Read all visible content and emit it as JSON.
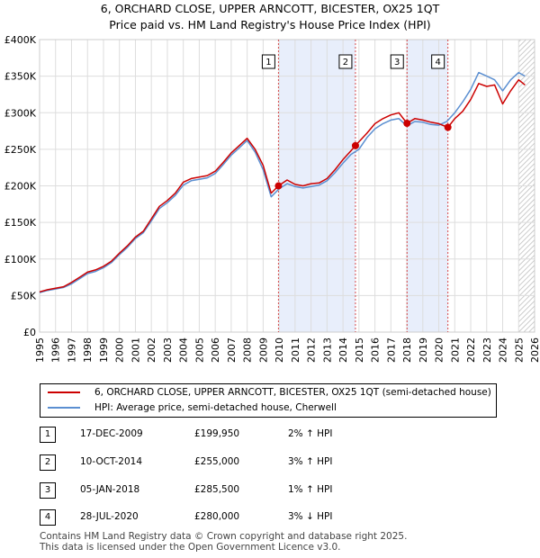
{
  "title_line1": "6, ORCHARD CLOSE, UPPER ARNCOTT, BICESTER, OX25 1QT",
  "title_line2": "Price paid vs. HM Land Registry's House Price Index (HPI)",
  "legend": {
    "property": "6, ORCHARD CLOSE, UPPER ARNCOTT, BICESTER, OX25 1QT (semi-detached house)",
    "hpi": "HPI: Average price, semi-detached house, Cherwell"
  },
  "transactions": [
    {
      "num": "1",
      "date": "17-DEC-2009",
      "price": "£199,950",
      "hpi_delta": "2% ↑ HPI"
    },
    {
      "num": "2",
      "date": "10-OCT-2014",
      "price": "£255,000",
      "hpi_delta": "3% ↑ HPI"
    },
    {
      "num": "3",
      "date": "05-JAN-2018",
      "price": "£285,500",
      "hpi_delta": "1% ↑ HPI"
    },
    {
      "num": "4",
      "date": "28-JUL-2020",
      "price": "£280,000",
      "hpi_delta": "3% ↓ HPI"
    }
  ],
  "footer_line1": "Contains HM Land Registry data © Crown copyright and database right 2025.",
  "footer_line2": "This data is licensed under the Open Government Licence v3.0.",
  "colors": {
    "property": "#cc0000",
    "hpi": "#5b8fd1",
    "shade": "#e8eefb",
    "grid": "#dddddd"
  },
  "chart_data": {
    "type": "line",
    "xlim": [
      1995,
      2026
    ],
    "ylim": [
      0,
      400000
    ],
    "yticks": [
      {
        "value": 0,
        "label": "£0"
      },
      {
        "value": 50000,
        "label": "£50K"
      },
      {
        "value": 100000,
        "label": "£100K"
      },
      {
        "value": 150000,
        "label": "£150K"
      },
      {
        "value": 200000,
        "label": "£200K"
      },
      {
        "value": 250000,
        "label": "£250K"
      },
      {
        "value": 300000,
        "label": "£300K"
      },
      {
        "value": 350000,
        "label": "£350K"
      },
      {
        "value": 400000,
        "label": "£400K"
      }
    ],
    "xticks": [
      "1995",
      "1996",
      "1997",
      "1998",
      "1999",
      "2000",
      "2001",
      "2002",
      "2003",
      "2004",
      "2005",
      "2006",
      "2007",
      "2008",
      "2009",
      "2010",
      "2011",
      "2012",
      "2013",
      "2014",
      "2015",
      "2016",
      "2017",
      "2018",
      "2019",
      "2020",
      "2021",
      "2022",
      "2023",
      "2024",
      "2025",
      "2026"
    ],
    "grid": true,
    "shaded_ranges": [
      [
        2009.96,
        2014.78
      ],
      [
        2018.01,
        2020.57
      ]
    ],
    "hatched_from": 2025.0,
    "markers": [
      {
        "label": "1",
        "x": 2009.96,
        "y": 199950
      },
      {
        "label": "2",
        "x": 2014.78,
        "y": 255000
      },
      {
        "label": "3",
        "x": 2018.01,
        "y": 285500
      },
      {
        "label": "4",
        "x": 2020.57,
        "y": 280000
      }
    ],
    "series": [
      {
        "name": "6, ORCHARD CLOSE, UPPER ARNCOTT, BICESTER, OX25 1QT (semi-detached house)",
        "x": [
          1995.0,
          1995.5,
          1996.0,
          1996.5,
          1997.0,
          1997.5,
          1998.0,
          1998.5,
          1999.0,
          1999.5,
          2000.0,
          2000.5,
          2001.0,
          2001.5,
          2002.0,
          2002.5,
          2003.0,
          2003.5,
          2004.0,
          2004.5,
          2005.0,
          2005.5,
          2006.0,
          2006.5,
          2007.0,
          2007.5,
          2008.0,
          2008.5,
          2009.0,
          2009.5,
          2009.96,
          2010.5,
          2011.0,
          2011.5,
          2012.0,
          2012.5,
          2013.0,
          2013.5,
          2014.0,
          2014.5,
          2014.78,
          2015.5,
          2016.0,
          2016.5,
          2017.0,
          2017.5,
          2018.01,
          2018.5,
          2019.0,
          2019.5,
          2020.0,
          2020.57,
          2021.0,
          2021.5,
          2022.0,
          2022.5,
          2023.0,
          2023.5,
          2024.0,
          2024.5,
          2025.0,
          2025.4
        ],
        "y": [
          55000,
          58000,
          60000,
          62000,
          68000,
          75000,
          82000,
          85000,
          90000,
          97000,
          108000,
          118000,
          130000,
          138000,
          155000,
          172000,
          180000,
          190000,
          205000,
          210000,
          212000,
          214000,
          220000,
          232000,
          245000,
          255000,
          265000,
          250000,
          228000,
          190000,
          199950,
          208000,
          202000,
          200000,
          203000,
          204000,
          210000,
          222000,
          236000,
          248000,
          255000,
          272000,
          285000,
          292000,
          297000,
          300000,
          285500,
          292000,
          290000,
          287000,
          285000,
          280000,
          292000,
          302000,
          318000,
          340000,
          336000,
          338000,
          312000,
          330000,
          345000,
          338000
        ]
      },
      {
        "name": "HPI: Average price, semi-detached house, Cherwell",
        "x": [
          1995.0,
          1995.5,
          1996.0,
          1996.5,
          1997.0,
          1997.5,
          1998.0,
          1998.5,
          1999.0,
          1999.5,
          2000.0,
          2000.5,
          2001.0,
          2001.5,
          2002.0,
          2002.5,
          2003.0,
          2003.5,
          2004.0,
          2004.5,
          2005.0,
          2005.5,
          2006.0,
          2006.5,
          2007.0,
          2007.5,
          2008.0,
          2008.5,
          2009.0,
          2009.5,
          2010.0,
          2010.5,
          2011.0,
          2011.5,
          2012.0,
          2012.5,
          2013.0,
          2013.5,
          2014.0,
          2014.5,
          2015.0,
          2015.5,
          2016.0,
          2016.5,
          2017.0,
          2017.5,
          2018.0,
          2018.5,
          2019.0,
          2019.5,
          2020.0,
          2020.5,
          2021.0,
          2021.5,
          2022.0,
          2022.5,
          2023.0,
          2023.5,
          2024.0,
          2024.5,
          2025.0,
          2025.4
        ],
        "y": [
          54000,
          57000,
          59000,
          61000,
          66000,
          73000,
          80000,
          83000,
          88000,
          95000,
          106000,
          116000,
          128000,
          136000,
          152000,
          169000,
          177000,
          187000,
          201000,
          207000,
          209000,
          211000,
          217000,
          229000,
          242000,
          252000,
          262000,
          246000,
          222000,
          185000,
          196000,
          203000,
          199000,
          197000,
          199000,
          201000,
          207000,
          218000,
          231000,
          243000,
          250000,
          266000,
          278000,
          285000,
          290000,
          292000,
          282000,
          288000,
          287000,
          284000,
          283000,
          288000,
          300000,
          315000,
          332000,
          355000,
          350000,
          345000,
          330000,
          345000,
          355000,
          350000
        ]
      }
    ]
  }
}
